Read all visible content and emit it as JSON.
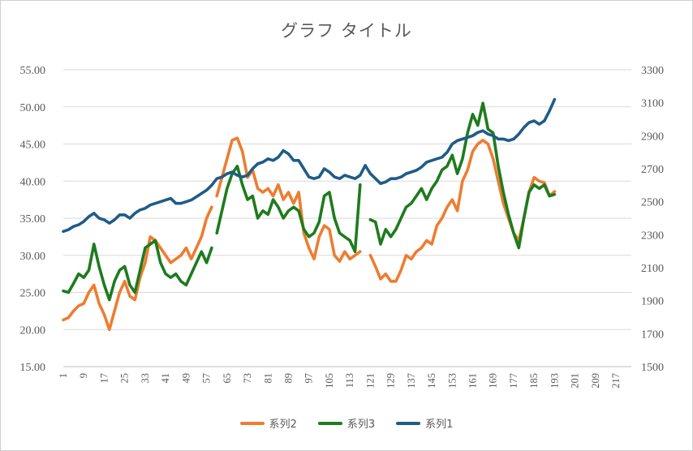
{
  "chart_data": {
    "type": "line",
    "title": "グラフ タイトル",
    "x": {
      "ticks": [
        1,
        9,
        17,
        25,
        33,
        41,
        49,
        57,
        65,
        73,
        81,
        89,
        97,
        105,
        113,
        121,
        129,
        137,
        145,
        153,
        161,
        169,
        177,
        185,
        193,
        201,
        209,
        217
      ],
      "range": [
        1,
        223
      ]
    },
    "y_left": {
      "ticks": [
        "15.00",
        "20.00",
        "25.00",
        "30.00",
        "35.00",
        "40.00",
        "45.00",
        "50.00",
        "55.00"
      ],
      "range": [
        15,
        55
      ]
    },
    "y_right": {
      "ticks": [
        "1500",
        "1700",
        "1900",
        "2100",
        "2300",
        "2500",
        "2700",
        "2900",
        "3100",
        "3300"
      ],
      "range": [
        1500,
        3300
      ]
    },
    "grid": true,
    "legend_position": "bottom",
    "series": [
      {
        "name": "系列2",
        "axis": "left",
        "color": "#ED7D31",
        "points": [
          [
            1,
            21.3
          ],
          [
            3,
            21.6
          ],
          [
            5,
            22.5
          ],
          [
            7,
            23.2
          ],
          [
            9,
            23.5
          ],
          [
            11,
            25.0
          ],
          [
            13,
            26.0
          ],
          [
            15,
            23.5
          ],
          [
            17,
            22.0
          ],
          [
            19,
            20.0
          ],
          [
            21,
            22.5
          ],
          [
            23,
            25.0
          ],
          [
            25,
            26.5
          ],
          [
            27,
            24.5
          ],
          [
            29,
            24.0
          ],
          [
            31,
            27.0
          ],
          [
            33,
            29.0
          ],
          [
            35,
            32.5
          ],
          [
            37,
            32.0
          ],
          [
            39,
            31.0
          ],
          [
            41,
            30.0
          ],
          [
            43,
            29.0
          ],
          [
            45,
            29.5
          ],
          [
            47,
            30.0
          ],
          [
            49,
            31.0
          ],
          [
            51,
            29.5
          ],
          [
            53,
            31.0
          ],
          [
            55,
            32.5
          ],
          [
            57,
            35.0
          ],
          [
            59,
            36.5
          ],
          [
            null,
            null
          ],
          [
            61,
            38.0
          ],
          [
            63,
            40.5
          ],
          [
            65,
            43.0
          ],
          [
            67,
            45.5
          ],
          [
            69,
            45.8
          ],
          [
            71,
            44.0
          ],
          [
            73,
            40.5
          ],
          [
            75,
            41.5
          ],
          [
            77,
            39.0
          ],
          [
            79,
            38.5
          ],
          [
            81,
            39.0
          ],
          [
            83,
            38.0
          ],
          [
            85,
            39.5
          ],
          [
            87,
            37.5
          ],
          [
            89,
            38.5
          ],
          [
            91,
            37.0
          ],
          [
            93,
            38.5
          ],
          [
            95,
            33.0
          ],
          [
            97,
            31.0
          ],
          [
            99,
            29.5
          ],
          [
            101,
            32.5
          ],
          [
            103,
            34.0
          ],
          [
            105,
            33.5
          ],
          [
            107,
            30.0
          ],
          [
            109,
            29.2
          ],
          [
            111,
            30.5
          ],
          [
            113,
            29.5
          ],
          [
            115,
            30.0
          ],
          [
            117,
            30.5
          ],
          [
            null,
            null
          ],
          [
            121,
            30.0
          ],
          [
            123,
            28.5
          ],
          [
            125,
            26.8
          ],
          [
            127,
            27.5
          ],
          [
            129,
            26.5
          ],
          [
            131,
            26.5
          ],
          [
            133,
            28.0
          ],
          [
            135,
            30.0
          ],
          [
            137,
            29.5
          ],
          [
            139,
            30.5
          ],
          [
            141,
            31.0
          ],
          [
            143,
            32.0
          ],
          [
            145,
            31.5
          ],
          [
            147,
            34.0
          ],
          [
            149,
            35.0
          ],
          [
            151,
            36.5
          ],
          [
            153,
            37.5
          ],
          [
            155,
            36.0
          ],
          [
            157,
            40.0
          ],
          [
            159,
            41.5
          ],
          [
            161,
            44.0
          ],
          [
            163,
            45.0
          ],
          [
            165,
            45.5
          ],
          [
            167,
            45.0
          ],
          [
            169,
            43.0
          ],
          [
            171,
            40.0
          ],
          [
            173,
            37.0
          ],
          [
            175,
            35.0
          ],
          [
            177,
            33.0
          ],
          [
            179,
            32.0
          ],
          [
            181,
            35.0
          ],
          [
            183,
            38.5
          ],
          [
            185,
            40.5
          ],
          [
            187,
            40.0
          ],
          [
            189,
            39.8
          ],
          [
            191,
            38.0
          ],
          [
            193,
            38.6
          ]
        ]
      },
      {
        "name": "系列3",
        "axis": "left",
        "color": "#1E7B1E",
        "points": [
          [
            1,
            25.2
          ],
          [
            3,
            25.0
          ],
          [
            5,
            26.2
          ],
          [
            7,
            27.5
          ],
          [
            9,
            27.0
          ],
          [
            11,
            28.0
          ],
          [
            13,
            31.5
          ],
          [
            15,
            28.5
          ],
          [
            17,
            26.0
          ],
          [
            19,
            24.0
          ],
          [
            21,
            26.5
          ],
          [
            23,
            28.0
          ],
          [
            25,
            28.5
          ],
          [
            27,
            26.0
          ],
          [
            29,
            25.0
          ],
          [
            31,
            28.0
          ],
          [
            33,
            31.0
          ],
          [
            35,
            31.5
          ],
          [
            37,
            32.0
          ],
          [
            39,
            29.0
          ],
          [
            41,
            27.5
          ],
          [
            43,
            27.0
          ],
          [
            45,
            27.5
          ],
          [
            47,
            26.5
          ],
          [
            49,
            26.0
          ],
          [
            51,
            27.5
          ],
          [
            53,
            29.0
          ],
          [
            55,
            30.5
          ],
          [
            57,
            29.0
          ],
          [
            59,
            31.0
          ],
          [
            null,
            null
          ],
          [
            61,
            33.0
          ],
          [
            63,
            36.0
          ],
          [
            65,
            39.0
          ],
          [
            67,
            41.0
          ],
          [
            69,
            42.0
          ],
          [
            71,
            39.5
          ],
          [
            73,
            37.5
          ],
          [
            75,
            38.0
          ],
          [
            77,
            35.0
          ],
          [
            79,
            36.0
          ],
          [
            81,
            35.5
          ],
          [
            83,
            37.5
          ],
          [
            85,
            36.5
          ],
          [
            87,
            35.0
          ],
          [
            89,
            36.0
          ],
          [
            91,
            36.5
          ],
          [
            93,
            36.0
          ],
          [
            95,
            33.5
          ],
          [
            97,
            32.5
          ],
          [
            99,
            33.0
          ],
          [
            101,
            34.5
          ],
          [
            103,
            38.0
          ],
          [
            105,
            38.5
          ],
          [
            107,
            35.0
          ],
          [
            109,
            33.0
          ],
          [
            111,
            32.5
          ],
          [
            113,
            32.0
          ],
          [
            115,
            30.5
          ],
          [
            117,
            39.5
          ],
          [
            null,
            null
          ],
          [
            121,
            34.8
          ],
          [
            123,
            34.5
          ],
          [
            125,
            31.5
          ],
          [
            127,
            33.5
          ],
          [
            129,
            32.5
          ],
          [
            131,
            33.5
          ],
          [
            133,
            35.0
          ],
          [
            135,
            36.5
          ],
          [
            137,
            37.0
          ],
          [
            139,
            38.0
          ],
          [
            141,
            39.0
          ],
          [
            143,
            37.5
          ],
          [
            145,
            39.0
          ],
          [
            147,
            40.0
          ],
          [
            149,
            41.5
          ],
          [
            151,
            42.0
          ],
          [
            153,
            43.5
          ],
          [
            155,
            41.0
          ],
          [
            157,
            43.0
          ],
          [
            159,
            46.5
          ],
          [
            161,
            49.0
          ],
          [
            163,
            47.5
          ],
          [
            165,
            50.5
          ],
          [
            167,
            47.0
          ],
          [
            169,
            46.5
          ],
          [
            171,
            42.0
          ],
          [
            173,
            38.5
          ],
          [
            175,
            35.5
          ],
          [
            177,
            33.0
          ],
          [
            179,
            31.0
          ],
          [
            181,
            35.0
          ],
          [
            183,
            38.5
          ],
          [
            185,
            39.5
          ],
          [
            187,
            39.0
          ],
          [
            189,
            39.5
          ],
          [
            191,
            38.0
          ],
          [
            193,
            38.2
          ]
        ]
      },
      {
        "name": "系列1",
        "axis": "right",
        "color": "#1F5C87",
        "points": [
          [
            1,
            2320
          ],
          [
            3,
            2330
          ],
          [
            5,
            2350
          ],
          [
            7,
            2360
          ],
          [
            9,
            2380
          ],
          [
            11,
            2410
          ],
          [
            13,
            2430
          ],
          [
            15,
            2400
          ],
          [
            17,
            2390
          ],
          [
            19,
            2370
          ],
          [
            21,
            2390
          ],
          [
            23,
            2420
          ],
          [
            25,
            2420
          ],
          [
            27,
            2400
          ],
          [
            29,
            2430
          ],
          [
            31,
            2450
          ],
          [
            33,
            2460
          ],
          [
            35,
            2480
          ],
          [
            37,
            2490
          ],
          [
            39,
            2500
          ],
          [
            41,
            2510
          ],
          [
            43,
            2520
          ],
          [
            45,
            2490
          ],
          [
            47,
            2490
          ],
          [
            49,
            2500
          ],
          [
            51,
            2510
          ],
          [
            53,
            2530
          ],
          [
            55,
            2550
          ],
          [
            57,
            2570
          ],
          [
            59,
            2600
          ],
          [
            61,
            2640
          ],
          [
            63,
            2650
          ],
          [
            65,
            2670
          ],
          [
            67,
            2680
          ],
          [
            69,
            2660
          ],
          [
            71,
            2650
          ],
          [
            73,
            2660
          ],
          [
            75,
            2700
          ],
          [
            77,
            2730
          ],
          [
            79,
            2740
          ],
          [
            81,
            2760
          ],
          [
            83,
            2750
          ],
          [
            85,
            2770
          ],
          [
            87,
            2810
          ],
          [
            89,
            2790
          ],
          [
            91,
            2750
          ],
          [
            93,
            2750
          ],
          [
            95,
            2700
          ],
          [
            97,
            2650
          ],
          [
            99,
            2640
          ],
          [
            101,
            2650
          ],
          [
            103,
            2700
          ],
          [
            105,
            2680
          ],
          [
            107,
            2650
          ],
          [
            109,
            2640
          ],
          [
            111,
            2660
          ],
          [
            113,
            2650
          ],
          [
            115,
            2640
          ],
          [
            117,
            2660
          ],
          [
            119,
            2720
          ],
          [
            121,
            2670
          ],
          [
            123,
            2640
          ],
          [
            125,
            2610
          ],
          [
            127,
            2620
          ],
          [
            129,
            2640
          ],
          [
            131,
            2640
          ],
          [
            133,
            2650
          ],
          [
            135,
            2670
          ],
          [
            137,
            2680
          ],
          [
            139,
            2690
          ],
          [
            141,
            2710
          ],
          [
            143,
            2740
          ],
          [
            145,
            2750
          ],
          [
            147,
            2760
          ],
          [
            149,
            2770
          ],
          [
            151,
            2800
          ],
          [
            153,
            2850
          ],
          [
            155,
            2870
          ],
          [
            157,
            2880
          ],
          [
            159,
            2890
          ],
          [
            161,
            2900
          ],
          [
            163,
            2920
          ],
          [
            165,
            2930
          ],
          [
            167,
            2910
          ],
          [
            169,
            2900
          ],
          [
            171,
            2880
          ],
          [
            173,
            2880
          ],
          [
            175,
            2870
          ],
          [
            177,
            2880
          ],
          [
            179,
            2910
          ],
          [
            181,
            2950
          ],
          [
            183,
            2980
          ],
          [
            185,
            2990
          ],
          [
            187,
            2970
          ],
          [
            189,
            2990
          ],
          [
            191,
            3050
          ],
          [
            193,
            3120
          ]
        ]
      }
    ]
  }
}
